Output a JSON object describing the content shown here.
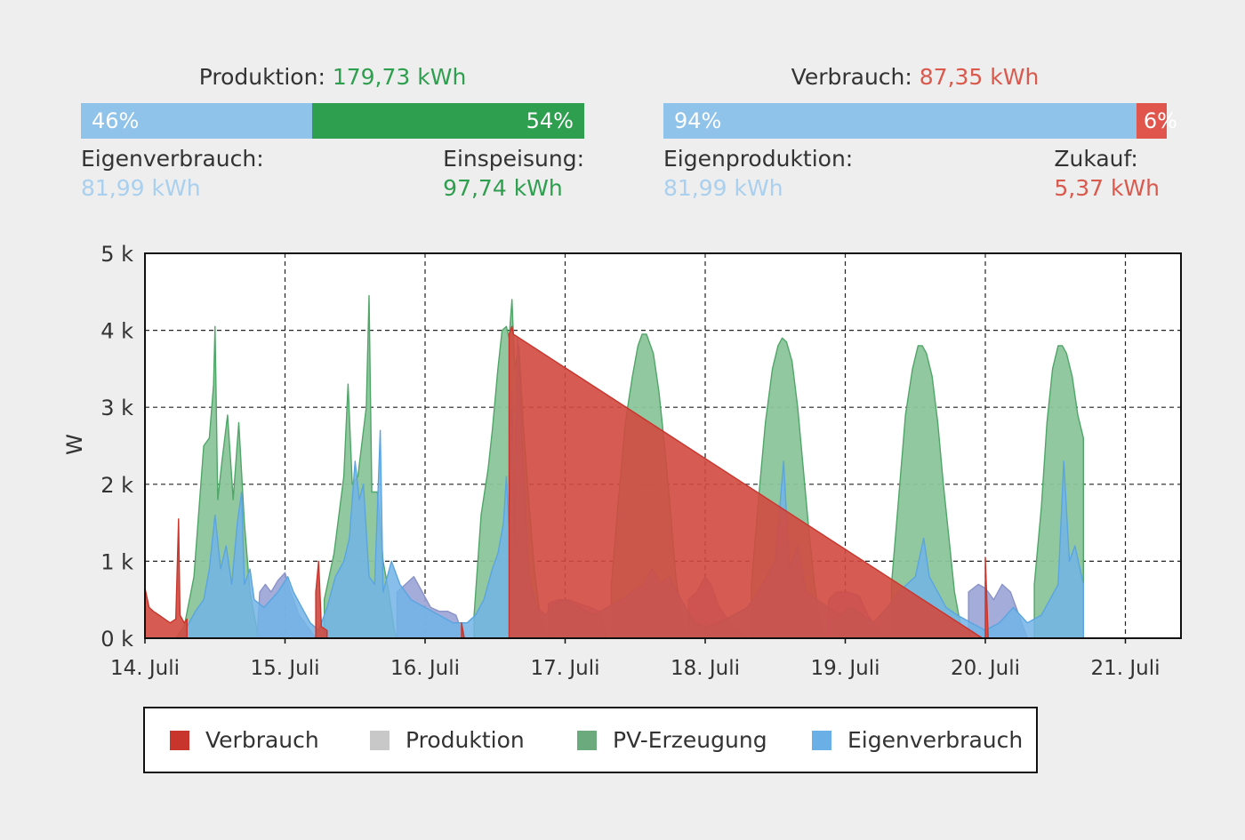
{
  "colors": {
    "verbrauch": "#c8352c",
    "produktion": "#c8c8c8",
    "pv": "#2e9e4f",
    "pv_fill": "#8cc59b",
    "eigen": "#8fc3ea",
    "eigen_fill": "#72b4e6",
    "zukauf": "#e0564c",
    "produktion_value_text": "#2e9e4f",
    "verbrauch_value_text": "#d9594d",
    "light_blue_text": "#a9d0ee"
  },
  "production": {
    "label": "Produktion:",
    "value": "179,73 kWh",
    "bar": [
      {
        "percent_label": "46%",
        "fraction": 0.46,
        "color": "#8fc3ea"
      },
      {
        "percent_label": "54%",
        "fraction": 0.54,
        "color": "#2e9e4f"
      }
    ],
    "left_caption": {
      "label": "Eigenverbrauch:",
      "value": "81,99 kWh"
    },
    "right_caption": {
      "label": "Einspeisung:",
      "value": "97,74 kWh"
    }
  },
  "consumption": {
    "label": "Verbrauch:",
    "value": "87,35 kWh",
    "bar": [
      {
        "percent_label": "94%",
        "fraction": 0.94,
        "color": "#8fc3ea"
      },
      {
        "percent_label": "6%",
        "fraction": 0.06,
        "color": "#e0564c"
      }
    ],
    "left_caption": {
      "label": "Eigenproduktion:",
      "value": "81,99 kWh"
    },
    "right_caption": {
      "label": "Zukauf:",
      "value": "5,37 kWh"
    }
  },
  "chart_data": {
    "type": "area",
    "ylabel": "W",
    "xlabel": "",
    "ylim": [
      0,
      5000
    ],
    "xlim": [
      0,
      7.4
    ],
    "y_ticks": [
      0,
      1000,
      2000,
      3000,
      4000,
      5000
    ],
    "y_tick_labels": [
      "0 k",
      "1 k",
      "2 k",
      "3 k",
      "4 k",
      "5 k"
    ],
    "x_ticks": [
      0,
      1,
      2,
      3,
      4,
      5,
      6,
      7
    ],
    "x_tick_labels": [
      "14. Juli",
      "15. Juli",
      "16. Juli",
      "17. Juli",
      "18. Juli",
      "19. Juli",
      "20. Juli",
      "21. Juli"
    ],
    "grid": true,
    "legend": [
      "Verbrauch",
      "Produktion",
      "PV-Erzeugung",
      "Eigenverbrauch"
    ],
    "legend_position": "bottom",
    "series": [
      {
        "name": "PV-Erzeugung",
        "color": "#8cc59b",
        "points": [
          [
            0.22,
            0
          ],
          [
            0.28,
            150
          ],
          [
            0.35,
            800
          ],
          [
            0.42,
            2500
          ],
          [
            0.46,
            2600
          ],
          [
            0.49,
            3300
          ],
          [
            0.5,
            4050
          ],
          [
            0.52,
            1800
          ],
          [
            0.55,
            2300
          ],
          [
            0.59,
            2900
          ],
          [
            0.63,
            1800
          ],
          [
            0.67,
            2800
          ],
          [
            0.71,
            1500
          ],
          [
            0.75,
            600
          ],
          [
            0.8,
            100
          ],
          [
            0.83,
            0
          ],
          [
            1.22,
            0
          ],
          [
            1.28,
            500
          ],
          [
            1.35,
            1100
          ],
          [
            1.42,
            2100
          ],
          [
            1.45,
            3300
          ],
          [
            1.48,
            2000
          ],
          [
            1.52,
            2100
          ],
          [
            1.56,
            2700
          ],
          [
            1.58,
            3000
          ],
          [
            1.6,
            4450
          ],
          [
            1.62,
            1900
          ],
          [
            1.66,
            1900
          ],
          [
            1.7,
            1000
          ],
          [
            1.74,
            600
          ],
          [
            1.78,
            100
          ],
          [
            1.8,
            0
          ],
          [
            2.3,
            0
          ],
          [
            2.35,
            300
          ],
          [
            2.4,
            1600
          ],
          [
            2.45,
            2200
          ],
          [
            2.48,
            2700
          ],
          [
            2.52,
            3500
          ],
          [
            2.55,
            4000
          ],
          [
            2.58,
            4050
          ],
          [
            2.6,
            3900
          ],
          [
            2.62,
            4400
          ],
          [
            2.64,
            3500
          ],
          [
            2.67,
            3800
          ],
          [
            2.7,
            2800
          ],
          [
            2.74,
            1800
          ],
          [
            2.78,
            900
          ],
          [
            2.82,
            300
          ],
          [
            2.88,
            0
          ],
          [
            3.28,
            0
          ],
          [
            3.33,
            700
          ],
          [
            3.38,
            1800
          ],
          [
            3.43,
            2800
          ],
          [
            3.48,
            3400
          ],
          [
            3.52,
            3800
          ],
          [
            3.55,
            3950
          ],
          [
            3.58,
            3950
          ],
          [
            3.63,
            3700
          ],
          [
            3.67,
            3200
          ],
          [
            3.71,
            2500
          ],
          [
            3.75,
            1700
          ],
          [
            3.79,
            800
          ],
          [
            3.83,
            300
          ],
          [
            3.87,
            0
          ],
          [
            4.28,
            0
          ],
          [
            4.33,
            700
          ],
          [
            4.38,
            1800
          ],
          [
            4.43,
            2800
          ],
          [
            4.48,
            3500
          ],
          [
            4.52,
            3800
          ],
          [
            4.55,
            3900
          ],
          [
            4.58,
            3850
          ],
          [
            4.62,
            3600
          ],
          [
            4.66,
            3000
          ],
          [
            4.7,
            2200
          ],
          [
            4.74,
            1400
          ],
          [
            4.78,
            700
          ],
          [
            4.82,
            200
          ],
          [
            4.86,
            0
          ],
          [
            5.28,
            0
          ],
          [
            5.33,
            700
          ],
          [
            5.38,
            1800
          ],
          [
            5.43,
            2900
          ],
          [
            5.48,
            3500
          ],
          [
            5.52,
            3800
          ],
          [
            5.55,
            3800
          ],
          [
            5.58,
            3700
          ],
          [
            5.62,
            3400
          ],
          [
            5.66,
            2800
          ],
          [
            5.7,
            2000
          ],
          [
            5.74,
            1300
          ],
          [
            5.78,
            600
          ],
          [
            5.82,
            200
          ],
          [
            5.86,
            0
          ],
          [
            6.3,
            0
          ],
          [
            6.35,
            700
          ],
          [
            6.4,
            1700
          ],
          [
            6.44,
            2800
          ],
          [
            6.48,
            3500
          ],
          [
            6.52,
            3800
          ],
          [
            6.55,
            3800
          ],
          [
            6.58,
            3700
          ],
          [
            6.62,
            3400
          ],
          [
            6.66,
            2900
          ],
          [
            6.7,
            2600
          ],
          [
            6.7,
            0
          ]
        ]
      },
      {
        "name": "Eigenverbrauch",
        "color": "#72b4e6",
        "points": [
          [
            0.26,
            0
          ],
          [
            0.3,
            150
          ],
          [
            0.36,
            350
          ],
          [
            0.42,
            500
          ],
          [
            0.46,
            900
          ],
          [
            0.5,
            1600
          ],
          [
            0.54,
            900
          ],
          [
            0.58,
            1200
          ],
          [
            0.62,
            700
          ],
          [
            0.66,
            1500
          ],
          [
            0.69,
            1900
          ],
          [
            0.71,
            700
          ],
          [
            0.75,
            900
          ],
          [
            0.78,
            500
          ],
          [
            0.85,
            400
          ],
          [
            0.95,
            600
          ],
          [
            1.02,
            800
          ],
          [
            1.06,
            600
          ],
          [
            1.12,
            400
          ],
          [
            1.18,
            200
          ],
          [
            1.24,
            100
          ],
          [
            1.3,
            400
          ],
          [
            1.36,
            800
          ],
          [
            1.42,
            1000
          ],
          [
            1.46,
            1300
          ],
          [
            1.5,
            2300
          ],
          [
            1.53,
            1800
          ],
          [
            1.56,
            2000
          ],
          [
            1.6,
            800
          ],
          [
            1.64,
            700
          ],
          [
            1.68,
            2700
          ],
          [
            1.7,
            600
          ],
          [
            1.76,
            1000
          ],
          [
            1.82,
            700
          ],
          [
            1.9,
            500
          ],
          [
            2.0,
            400
          ],
          [
            2.1,
            300
          ],
          [
            2.2,
            200
          ],
          [
            2.3,
            200
          ],
          [
            2.36,
            300
          ],
          [
            2.42,
            500
          ],
          [
            2.48,
            900
          ],
          [
            2.52,
            1100
          ],
          [
            2.56,
            1500
          ],
          [
            2.58,
            2100
          ],
          [
            2.6,
            1400
          ],
          [
            2.62,
            3200
          ],
          [
            2.64,
            1200
          ],
          [
            2.66,
            3900
          ],
          [
            2.7,
            2300
          ],
          [
            2.74,
            800
          ],
          [
            2.8,
            400
          ],
          [
            2.86,
            300
          ],
          [
            2.92,
            450
          ],
          [
            3.0,
            500
          ],
          [
            3.1,
            400
          ],
          [
            3.2,
            300
          ],
          [
            3.3,
            400
          ],
          [
            3.4,
            500
          ],
          [
            3.48,
            600
          ],
          [
            3.56,
            700
          ],
          [
            3.62,
            900
          ],
          [
            3.68,
            700
          ],
          [
            3.74,
            800
          ],
          [
            3.8,
            600
          ],
          [
            3.86,
            400
          ],
          [
            3.92,
            200
          ],
          [
            4.0,
            150
          ],
          [
            4.1,
            200
          ],
          [
            4.2,
            300
          ],
          [
            4.3,
            400
          ],
          [
            4.38,
            600
          ],
          [
            4.44,
            800
          ],
          [
            4.5,
            1000
          ],
          [
            4.56,
            2300
          ],
          [
            4.6,
            900
          ],
          [
            4.66,
            1200
          ],
          [
            4.72,
            600
          ],
          [
            4.8,
            500
          ],
          [
            4.88,
            400
          ],
          [
            4.96,
            300
          ],
          [
            5.04,
            400
          ],
          [
            5.12,
            300
          ],
          [
            5.2,
            200
          ],
          [
            5.3,
            400
          ],
          [
            5.38,
            600
          ],
          [
            5.44,
            700
          ],
          [
            5.5,
            800
          ],
          [
            5.56,
            1300
          ],
          [
            5.6,
            800
          ],
          [
            5.66,
            600
          ],
          [
            5.72,
            400
          ],
          [
            5.8,
            300
          ],
          [
            5.9,
            200
          ],
          [
            6.0,
            100
          ],
          [
            6.1,
            200
          ],
          [
            6.2,
            400
          ],
          [
            6.3,
            200
          ],
          [
            6.4,
            300
          ],
          [
            6.46,
            500
          ],
          [
            6.52,
            700
          ],
          [
            6.56,
            2300
          ],
          [
            6.6,
            1000
          ],
          [
            6.64,
            1200
          ],
          [
            6.7,
            700
          ],
          [
            6.7,
            0
          ]
        ]
      },
      {
        "name": "Produktion",
        "color": "#9999cc",
        "points": [
          [
            0.8,
            0
          ],
          [
            0.82,
            600
          ],
          [
            0.86,
            700
          ],
          [
            0.9,
            600
          ],
          [
            0.95,
            750
          ],
          [
            1.0,
            850
          ],
          [
            1.04,
            600
          ],
          [
            1.1,
            300
          ],
          [
            1.16,
            150
          ],
          [
            1.22,
            0
          ],
          [
            1.78,
            0
          ],
          [
            1.8,
            600
          ],
          [
            1.86,
            700
          ],
          [
            1.92,
            800
          ],
          [
            1.98,
            600
          ],
          [
            2.04,
            400
          ],
          [
            2.1,
            350
          ],
          [
            2.16,
            350
          ],
          [
            2.22,
            300
          ],
          [
            2.28,
            0
          ],
          [
            2.86,
            0
          ],
          [
            2.88,
            450
          ],
          [
            2.95,
            500
          ],
          [
            3.02,
            500
          ],
          [
            3.1,
            450
          ],
          [
            3.18,
            400
          ],
          [
            3.24,
            350
          ],
          [
            3.3,
            0
          ],
          [
            3.86,
            0
          ],
          [
            3.88,
            500
          ],
          [
            3.94,
            600
          ],
          [
            4.0,
            800
          ],
          [
            4.04,
            700
          ],
          [
            4.1,
            400
          ],
          [
            4.18,
            200
          ],
          [
            4.24,
            100
          ],
          [
            4.3,
            0
          ],
          [
            4.86,
            0
          ],
          [
            4.88,
            500
          ],
          [
            4.94,
            600
          ],
          [
            5.02,
            600
          ],
          [
            5.1,
            550
          ],
          [
            5.16,
            300
          ],
          [
            5.22,
            150
          ],
          [
            5.28,
            0
          ],
          [
            5.86,
            0
          ],
          [
            5.88,
            600
          ],
          [
            5.95,
            700
          ],
          [
            6.0,
            650
          ],
          [
            6.06,
            500
          ],
          [
            6.12,
            700
          ],
          [
            6.18,
            600
          ],
          [
            6.24,
            300
          ],
          [
            6.3,
            0
          ]
        ]
      },
      {
        "name": "Verbrauch",
        "color": "#c8352c",
        "points": [
          [
            0.0,
            0
          ],
          [
            0.0,
            650
          ],
          [
            0.03,
            400
          ],
          [
            0.06,
            350
          ],
          [
            0.1,
            300
          ],
          [
            0.14,
            250
          ],
          [
            0.18,
            200
          ],
          [
            0.22,
            250
          ],
          [
            0.24,
            1550
          ],
          [
            0.25,
            300
          ],
          [
            0.28,
            200
          ],
          [
            0.3,
            250
          ],
          [
            0.3,
            0
          ],
          [
            1.18,
            0
          ],
          [
            1.22,
            600
          ],
          [
            1.24,
            1000
          ],
          [
            1.26,
            150
          ],
          [
            1.3,
            100
          ],
          [
            1.3,
            0
          ],
          [
            2.24,
            0
          ],
          [
            2.26,
            200
          ],
          [
            2.28,
            0
          ],
          [
            2.6,
            3950
          ],
          [
            2.62,
            4050
          ],
          [
            2.63,
            3950
          ],
          [
            5.98,
            0
          ],
          [
            6.0,
            1050
          ],
          [
            6.02,
            0
          ]
        ]
      }
    ]
  }
}
